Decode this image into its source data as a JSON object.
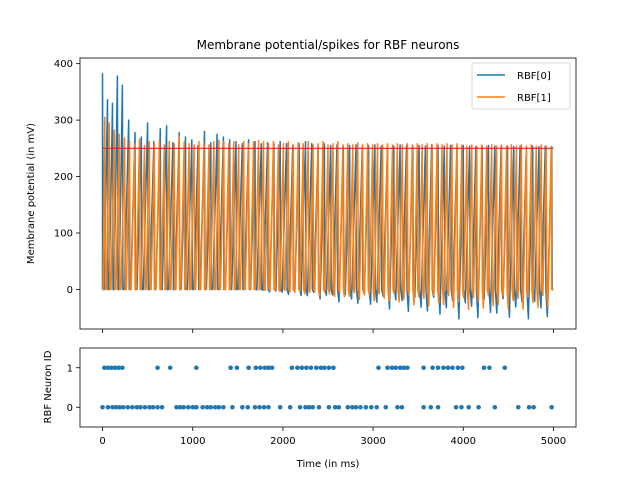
{
  "chart_data": [
    {
      "type": "line",
      "title": "Membrane potential/spikes for RBF neurons",
      "xlabel": "",
      "ylabel": "Membrane potential (in mV)",
      "xlim": [
        -250,
        5250
      ],
      "ylim": [
        -70,
        410
      ],
      "yticks": [
        0,
        100,
        200,
        300,
        400
      ],
      "xticks": [
        0,
        1000,
        2000,
        3000,
        4000,
        5000
      ],
      "grid": false,
      "legend_position": "top-right",
      "threshold": {
        "value": 250,
        "x_range": [
          0,
          5000
        ],
        "color": "#d62728"
      },
      "series": [
        {
          "name": "RBF[0]",
          "color": "#1f77b4",
          "spike_times": [
            0,
            55,
            110,
            165,
            220,
            290,
            360,
            430,
            500,
            570,
            640,
            710,
            780,
            850,
            920,
            990,
            1060,
            1130,
            1200,
            1270,
            1340,
            1410,
            1480,
            1550,
            1620,
            1690,
            1760,
            1830,
            1900,
            1970,
            2040,
            2110,
            2180,
            2250,
            2320,
            2390,
            2460,
            2530,
            2600,
            2670,
            2740,
            2810,
            2880,
            2950,
            3020,
            3090,
            3160,
            3230,
            3300,
            3370,
            3440,
            3510,
            3580,
            3650,
            3720,
            3790,
            3860,
            3930,
            4000,
            4070,
            4140,
            4210,
            4280,
            4350,
            4420,
            4490,
            4560,
            4630,
            4700,
            4770,
            4840,
            4910,
            4980
          ],
          "spike_peaks": [
            382,
            336,
            330,
            378,
            362,
            300,
            278,
            270,
            295,
            262,
            285,
            290,
            260,
            278,
            270,
            265,
            255,
            280,
            260,
            275,
            270,
            265,
            262,
            258,
            265,
            262,
            258,
            260,
            258,
            262,
            258,
            255,
            258,
            262,
            258,
            255,
            258,
            255,
            256,
            254,
            255,
            256,
            254,
            255,
            256,
            254,
            255,
            254,
            256,
            255,
            254,
            255,
            254,
            256,
            255,
            254,
            255,
            254,
            255,
            254,
            253,
            254,
            255,
            254,
            253,
            254,
            253,
            254,
            253,
            254,
            253,
            254,
            253
          ],
          "trough_min": -52
        },
        {
          "name": "RBF[1]",
          "color": "#ff7f0e",
          "spike_times": [
            25,
            75,
            130,
            185,
            245,
            300,
            355,
            410,
            465,
            520,
            575,
            630,
            685,
            740,
            795,
            850,
            905,
            960,
            1015,
            1070,
            1125,
            1180,
            1235,
            1290,
            1345,
            1400,
            1455,
            1510,
            1565,
            1620,
            1675,
            1730,
            1785,
            1840,
            1895,
            1950,
            2005,
            2060,
            2115,
            2170,
            2225,
            2280,
            2335,
            2390,
            2445,
            2500,
            2555,
            2610,
            2665,
            2720,
            2775,
            2830,
            2885,
            2940,
            2995,
            3050,
            3105,
            3160,
            3215,
            3270,
            3325,
            3380,
            3435,
            3490,
            3545,
            3600,
            3655,
            3710,
            3765,
            3820,
            3875,
            3930,
            3985,
            4040,
            4095,
            4150,
            4205,
            4260,
            4315,
            4370,
            4425,
            4480,
            4535,
            4590,
            4645,
            4700,
            4755,
            4810,
            4865,
            4920,
            4975
          ],
          "spike_peaks": [
            305,
            295,
            282,
            275,
            268,
            262,
            258,
            266,
            255,
            262,
            258,
            264,
            256,
            262,
            258,
            270,
            262,
            258,
            256,
            262,
            258,
            256,
            262,
            264,
            262,
            258,
            262,
            256,
            262,
            258,
            262,
            264,
            262,
            258,
            262,
            256,
            258,
            262,
            256,
            260,
            258,
            262,
            256,
            258,
            262,
            256,
            258,
            262,
            256,
            258,
            256,
            260,
            256,
            258,
            256,
            258,
            256,
            258,
            256,
            258,
            256,
            258,
            256,
            258,
            256,
            258,
            256,
            258,
            256,
            258,
            256,
            258,
            256,
            254,
            256,
            254,
            256,
            254,
            256,
            254,
            256,
            254,
            256,
            254,
            256,
            254,
            256,
            254,
            256,
            254,
            252
          ],
          "trough_min": -35
        }
      ]
    },
    {
      "type": "scatter",
      "title": "",
      "xlabel": "Time (in ms)",
      "ylabel": "RBF Neuron ID",
      "xlim": [
        -250,
        5250
      ],
      "ylim": [
        -0.5,
        1.5
      ],
      "yticks": [
        0,
        1
      ],
      "xticks": [
        0,
        1000,
        2000,
        3000,
        4000,
        5000
      ],
      "grid": false,
      "color": "#1f77b4",
      "series": [
        {
          "y": 1,
          "x": [
            20,
            60,
            100,
            140,
            180,
            220,
            610,
            750,
            1040,
            1420,
            1490,
            1620,
            1700,
            1750,
            1800,
            1840,
            1880,
            2100,
            2160,
            2210,
            2260,
            2310,
            2370,
            2420,
            2460,
            2510,
            2560,
            3060,
            3160,
            3210,
            3250,
            3300,
            3340,
            3380,
            3560,
            3660,
            3720,
            3780,
            3830,
            3880,
            3940,
            3990,
            4230,
            4290,
            4460
          ]
        },
        {
          "y": 0,
          "x": [
            0,
            60,
            110,
            150,
            190,
            230,
            280,
            330,
            380,
            420,
            470,
            520,
            560,
            610,
            660,
            820,
            860,
            900,
            950,
            1000,
            1040,
            1110,
            1160,
            1200,
            1250,
            1290,
            1340,
            1440,
            1550,
            1610,
            1690,
            1740,
            1790,
            1840,
            1970,
            2080,
            2190,
            2250,
            2290,
            2330,
            2400,
            2510,
            2580,
            2620,
            2720,
            2770,
            2810,
            2860,
            2920,
            2980,
            3040,
            3140,
            3270,
            3320,
            3560,
            3640,
            3720,
            3920,
            3980,
            4060,
            4170,
            4350,
            4610,
            4730,
            4780,
            4980
          ]
        }
      ]
    }
  ]
}
